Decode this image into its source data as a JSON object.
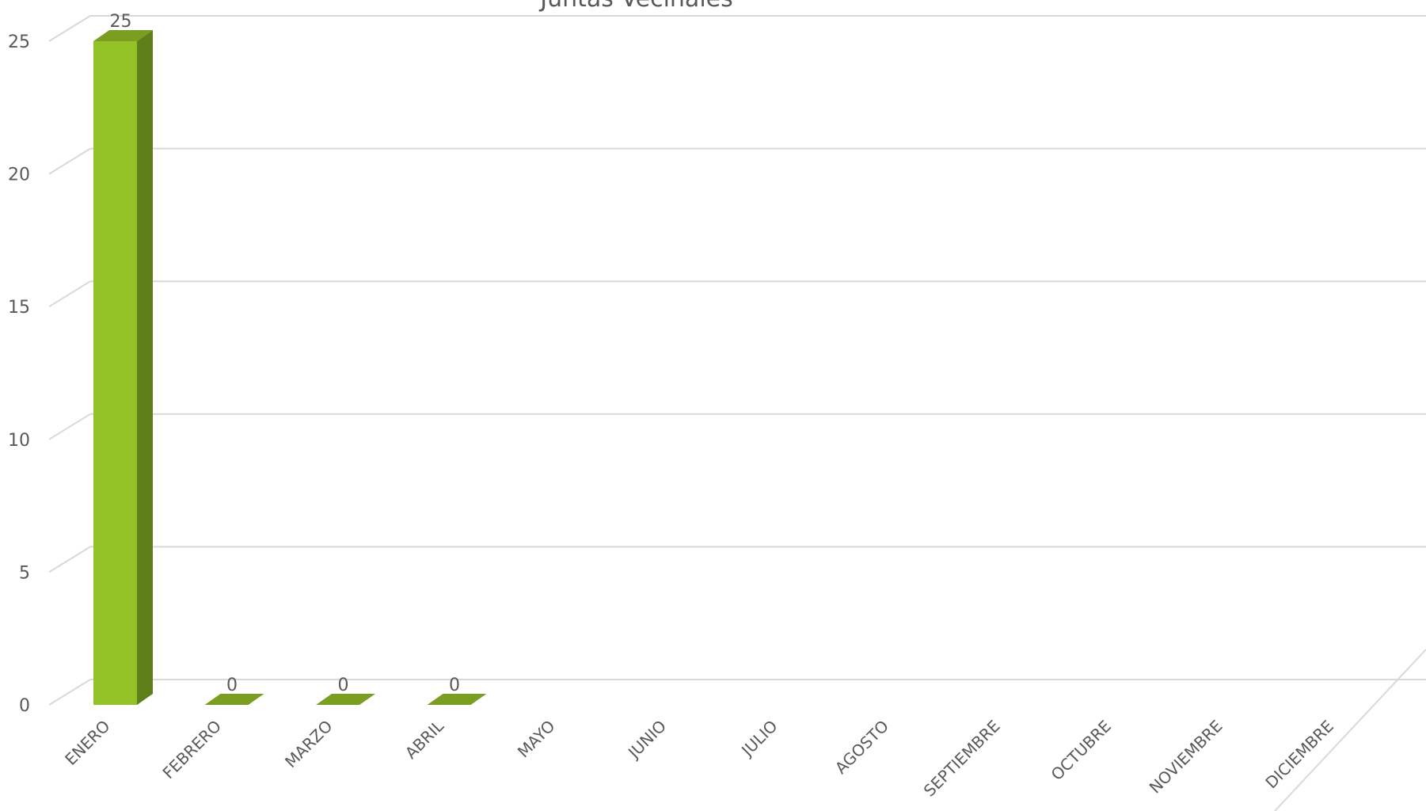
{
  "chart_data": {
    "type": "bar",
    "title": "Juntas Vecinales",
    "categories": [
      "ENERO",
      "FEBRERO",
      "MARZO",
      "ABRIL",
      "MAYO",
      "JUNIO",
      "JULIO",
      "AGOSTO",
      "SEPTIEMBRE",
      "OCTUBRE",
      "NOVIEMBRE",
      "DICIEMBRE"
    ],
    "values": [
      25,
      0,
      0,
      0,
      null,
      null,
      null,
      null,
      null,
      null,
      null,
      null
    ],
    "data_labels": [
      "25",
      "0",
      "0",
      "0",
      "",
      "",
      "",
      "",
      "",
      "",
      "",
      ""
    ],
    "ylim": [
      0,
      25
    ],
    "yticks": [
      "0",
      "5",
      "10",
      "15",
      "20",
      "25"
    ],
    "xlabel": "",
    "ylabel": "",
    "grid": true,
    "three_d": true,
    "colors": {
      "bar_front": "#92C225",
      "bar_side": "#5E7F1A",
      "bar_top": "#7A9E20",
      "grid": "#D9D9D9",
      "text": "#595959"
    }
  }
}
